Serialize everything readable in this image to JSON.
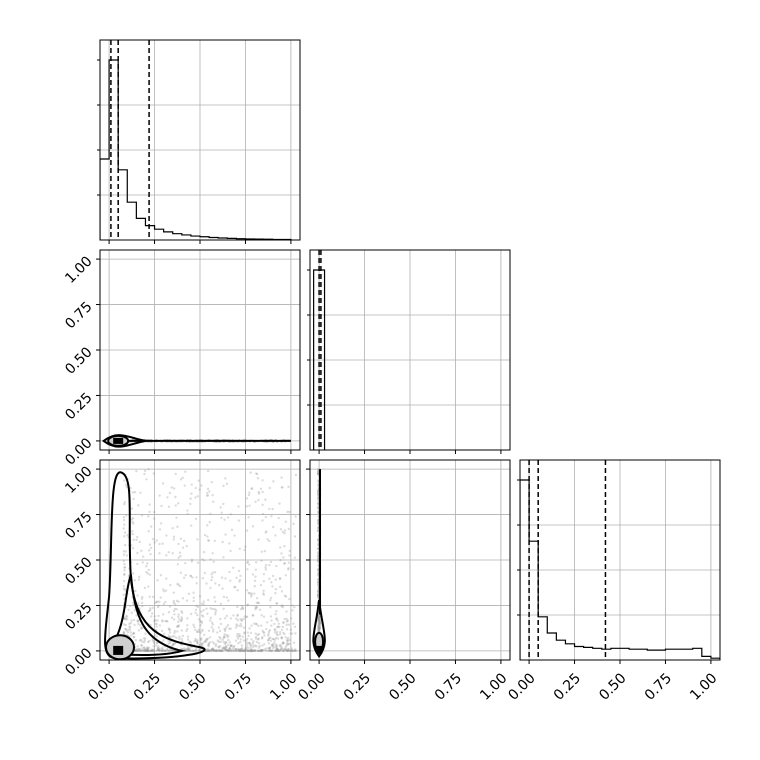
{
  "chart_data": {
    "type": "corner",
    "ticks": [
      0.0,
      0.25,
      0.5,
      0.75,
      1.0
    ],
    "tick_labels": [
      "0.00",
      "0.25",
      "0.50",
      "0.75",
      "1.00"
    ],
    "xlim": [
      -0.05,
      1.05
    ],
    "ylim": [
      -0.05,
      1.05
    ],
    "grid": true,
    "colors": {
      "line": "#000000",
      "grid": "#b0b0b0",
      "scatter": "#9a9a9a",
      "contour_fill": "#cfcfcf"
    },
    "histograms": [
      {
        "panel": "row1-col1",
        "bin_edges": [
          -0.05,
          0.0,
          0.05,
          0.1,
          0.15,
          0.2,
          0.25,
          0.3,
          0.35,
          0.4,
          0.45,
          0.5,
          0.55,
          0.6,
          0.65,
          0.7,
          0.75,
          0.8,
          0.85,
          0.9,
          0.95,
          1.0
        ],
        "heights": [
          0.45,
          1.0,
          0.39,
          0.21,
          0.12,
          0.08,
          0.06,
          0.045,
          0.035,
          0.028,
          0.022,
          0.018,
          0.014,
          0.011,
          0.009,
          0.007,
          0.006,
          0.005,
          0.004,
          0.003,
          0.003
        ],
        "quantiles": [
          0.01,
          0.05,
          0.22
        ]
      },
      {
        "panel": "row2-col2",
        "bin_edges": [
          -0.03,
          0.0,
          0.03
        ],
        "heights": [
          1.0,
          1.0
        ],
        "quantiles": [
          0.0,
          0.01
        ]
      },
      {
        "panel": "row3-col3",
        "bin_edges": [
          -0.05,
          0.0,
          0.05,
          0.1,
          0.15,
          0.2,
          0.25,
          0.3,
          0.35,
          0.4,
          0.45,
          0.5,
          0.55,
          0.6,
          0.65,
          0.7,
          0.75,
          0.8,
          0.85,
          0.9,
          0.95,
          1.0,
          1.05
        ],
        "heights": [
          1.0,
          0.66,
          0.24,
          0.15,
          0.11,
          0.09,
          0.075,
          0.07,
          0.065,
          0.06,
          0.065,
          0.065,
          0.06,
          0.06,
          0.055,
          0.055,
          0.06,
          0.06,
          0.06,
          0.065,
          0.02,
          0.01
        ],
        "quantiles": [
          0.0,
          0.05,
          0.42
        ]
      }
    ],
    "scatter_panels": [
      {
        "panel": "row2-col1",
        "x_range": [
          0.0,
          1.0
        ],
        "y_value": 0.0,
        "mode": "x",
        "peak": [
          0.05,
          0.0
        ]
      },
      {
        "panel": "row3-col1",
        "x_range": [
          0.0,
          1.0
        ],
        "y_range": [
          0.0,
          1.0
        ],
        "mode": "xy",
        "peak": [
          0.05,
          0.0
        ]
      },
      {
        "panel": "row3-col2",
        "x_value": 0.0,
        "y_range": [
          0.0,
          1.0
        ],
        "mode": "y",
        "peak": [
          0.0,
          0.05
        ]
      }
    ]
  }
}
